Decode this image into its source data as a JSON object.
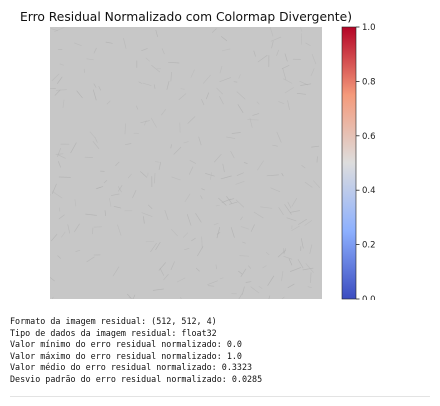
{
  "chart_data": {
    "type": "heatmap",
    "title": "Erro Residual Normalizado com Colormap Divergente)",
    "colormap": "coolwarm",
    "axes_visible": false,
    "image_shape": [
      512,
      512,
      4
    ],
    "fill_color": "#c7c7c7",
    "texture_color": "#b0b0b0",
    "colorbar": {
      "range": [
        0.0,
        1.0
      ],
      "ticks": [
        {
          "value": 0.0,
          "label": "0.0"
        },
        {
          "value": 0.2,
          "label": "0.2"
        },
        {
          "value": 0.4,
          "label": "0.4"
        },
        {
          "value": 0.6,
          "label": "0.6"
        },
        {
          "value": 0.8,
          "label": "0.8"
        },
        {
          "value": 1.0,
          "label": "1.0"
        }
      ],
      "colors": [
        "#3b4cc0",
        "#8db0fe",
        "#dddddd",
        "#f49a7b",
        "#b40426"
      ]
    }
  },
  "output": {
    "lines": [
      "Formato da imagem residual: (512, 512, 4)",
      "Tipo de dados da imagem residual: float32",
      "Valor mínimo do erro residual normalizado: 0.0",
      "Valor máximo do erro residual normalizado: 1.0",
      "Valor médio do erro residual normalizado: 0.3323",
      "Desvio padrão do erro residual normalizado: 0.0285"
    ]
  }
}
